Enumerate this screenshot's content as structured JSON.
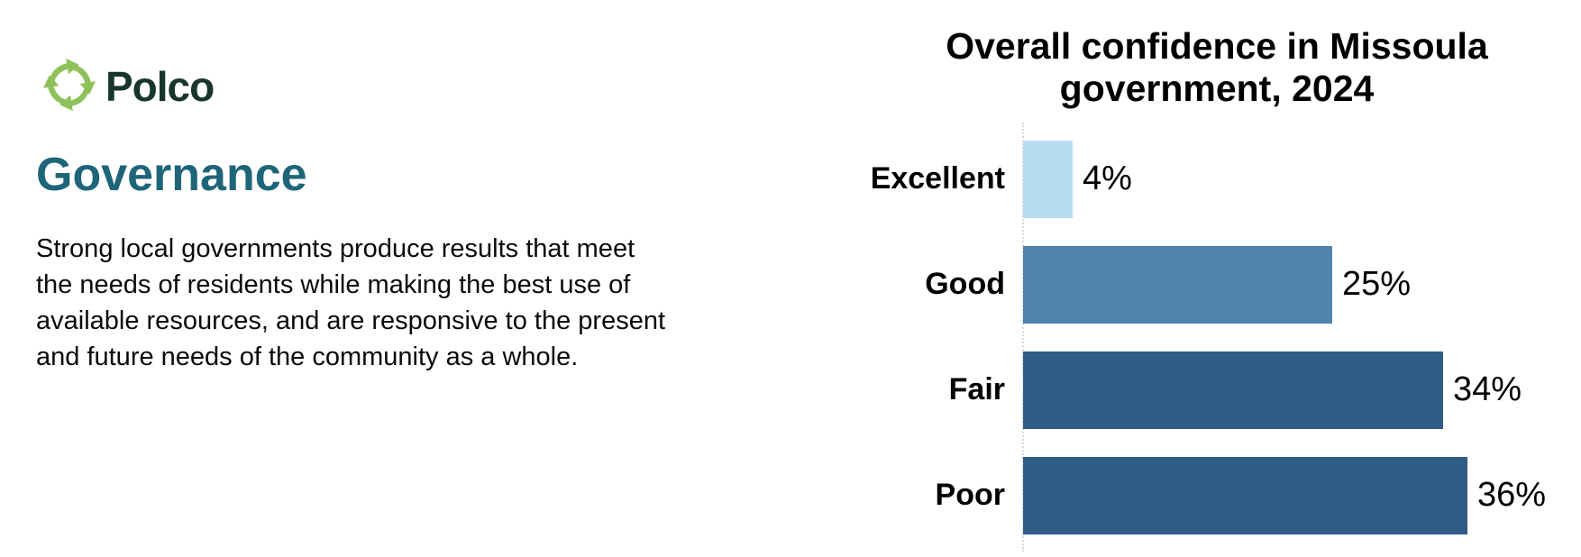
{
  "brand": {
    "name": "Polco",
    "colors": {
      "wordmark": "#17352C",
      "leaf_light": "#8FC15A",
      "leaf_dark": "#79AC45"
    }
  },
  "section": {
    "title": "Governance",
    "title_color": "#1E6579",
    "description_lines": [
      "Strong local governments produce results that meet",
      "the needs of residents while making the best use of",
      "available resources, and are responsive to the present",
      "and future needs of the community as a whole."
    ]
  },
  "chart_data": {
    "type": "bar",
    "orientation": "horizontal",
    "title": "Overall confidence in Missoula government, 2024",
    "title_lines": [
      "Overall confidence in Missoula",
      "government, 2024"
    ],
    "categories": [
      "Excellent",
      "Good",
      "Fair",
      "Poor"
    ],
    "values": [
      4,
      25,
      34,
      36
    ],
    "value_labels": [
      "4%",
      "25%",
      "34%",
      "36%"
    ],
    "unit": "%",
    "xlim": [
      0,
      40
    ],
    "bar_colors": [
      "#B6DCEF",
      "#5082AC",
      "#2F5C85",
      "#2F5C85"
    ],
    "axis_line_color": "#D9D9D9",
    "grid": false,
    "legend": false
  }
}
